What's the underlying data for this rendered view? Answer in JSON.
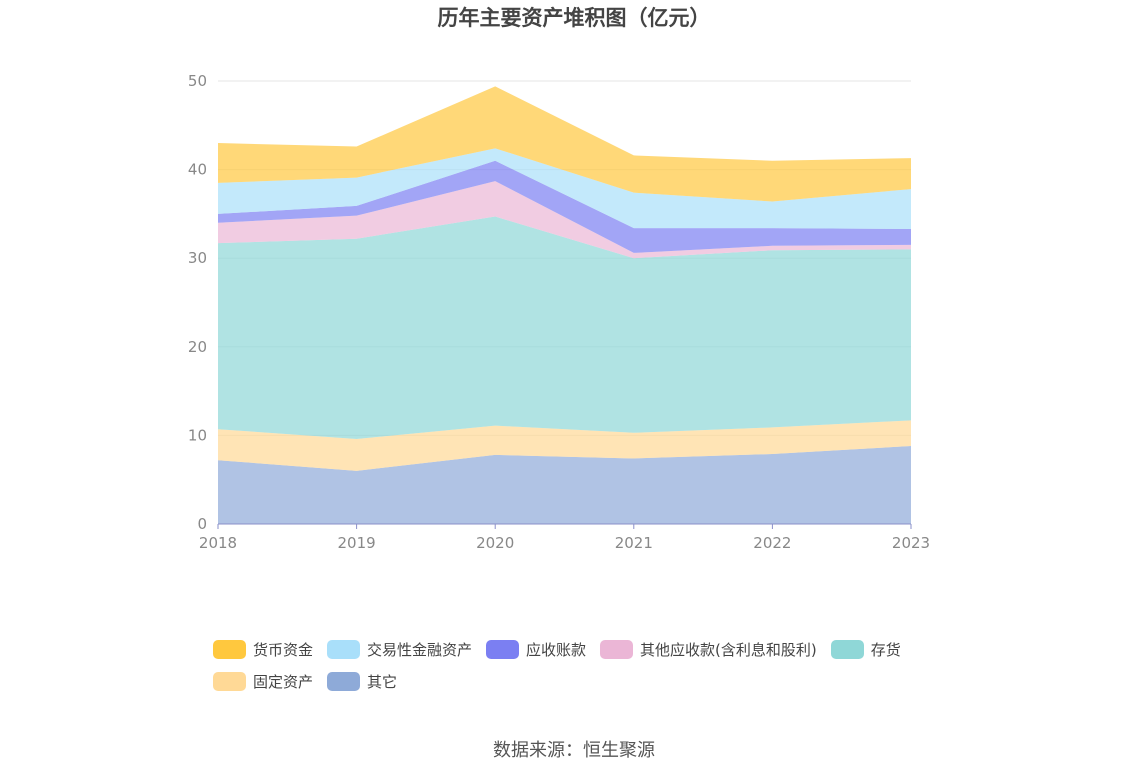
{
  "chart_data": {
    "type": "area",
    "stacked": true,
    "title": "历年主要资产堆积图（亿元）",
    "categories": [
      "2018",
      "2019",
      "2020",
      "2021",
      "2022",
      "2023"
    ],
    "ylim": [
      0,
      50
    ],
    "yticks": [
      0,
      10,
      20,
      30,
      40,
      50
    ],
    "grid": true,
    "legend_position": "bottom",
    "series": [
      {
        "name": "其它",
        "color": "#8eaad8",
        "values": [
          7.2,
          6.0,
          7.8,
          7.4,
          7.9,
          8.8
        ]
      },
      {
        "name": "固定资产",
        "color": "#ffd996",
        "values": [
          3.5,
          3.6,
          3.3,
          2.9,
          3.0,
          2.9
        ]
      },
      {
        "name": "存货",
        "color": "#8fd7d7",
        "values": [
          21.0,
          22.6,
          23.6,
          19.7,
          20.0,
          19.3
        ]
      },
      {
        "name": "其他应收款(含利息和股利)",
        "color": "#ebb6d6",
        "values": [
          2.3,
          2.6,
          4.0,
          0.6,
          0.5,
          0.5
        ]
      },
      {
        "name": "应收账款",
        "color": "#7b7ff2",
        "values": [
          1.0,
          1.1,
          2.3,
          2.8,
          2.0,
          1.8
        ]
      },
      {
        "name": "交易性金融资产",
        "color": "#a9dffa",
        "values": [
          3.5,
          3.2,
          1.4,
          4.0,
          3.0,
          4.5
        ]
      },
      {
        "name": "货币资金",
        "color": "#ffc83e",
        "values": [
          4.5,
          3.5,
          7.0,
          4.2,
          4.6,
          3.5
        ]
      }
    ]
  },
  "legend_order": [
    "货币资金",
    "交易性金融资产",
    "应收账款",
    "其他应收款(含利息和股利)",
    "存货",
    "固定资产",
    "其它"
  ],
  "source": "数据来源：恒生聚源"
}
